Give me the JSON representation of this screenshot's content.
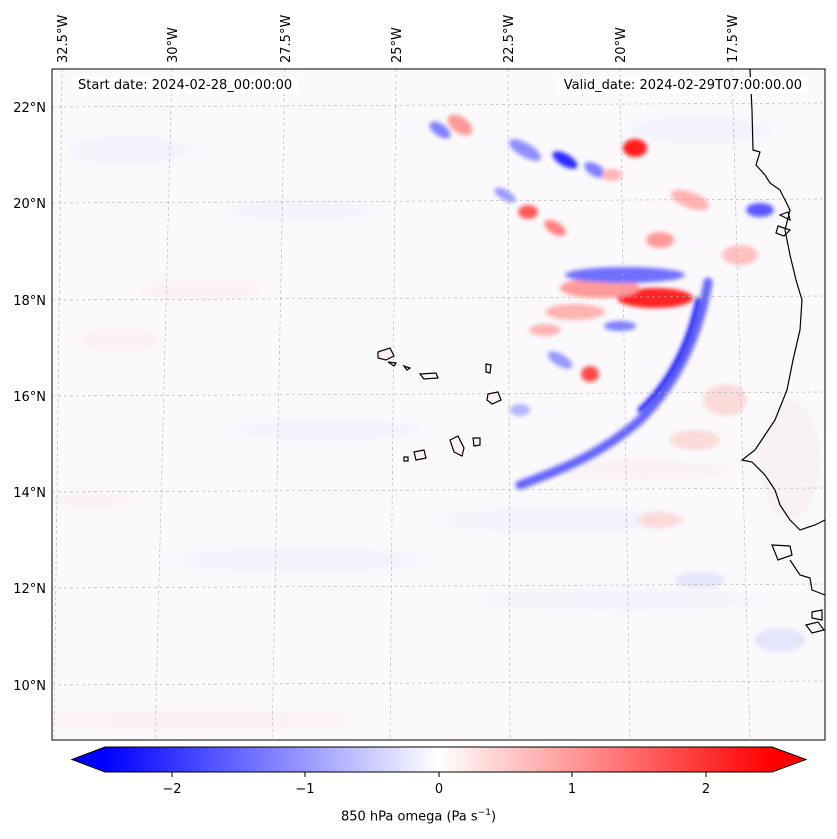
{
  "header": {
    "start_date": "Start date: 2024-02-28_00:00:00",
    "valid_date": "Valid_date: 2024-02-29T07:00:00.00"
  },
  "map": {
    "lon_labels": [
      "32.5°W",
      "30°W",
      "27.5°W",
      "25°W",
      "22.5°W",
      "20°W",
      "17.5°W"
    ],
    "lat_labels": [
      "22°N",
      "20°N",
      "18°N",
      "16°N",
      "14°N",
      "12°N",
      "10°N"
    ],
    "field": "850 hPa omega",
    "colormap": "bwr",
    "colors": {
      "negative": "#0000ff",
      "zero": "#ffffff",
      "positive": "#ff0000",
      "coast": "#000000",
      "grid": "#b0b0b0"
    }
  },
  "colorbar": {
    "label_main": "850 hPa omega (Pa s",
    "label_exp": "−1",
    "label_close": ")",
    "tick_labels": [
      "−2",
      "−1",
      "0",
      "1",
      "2"
    ],
    "ticks": [
      -2,
      -1,
      0,
      1,
      2
    ],
    "range": [
      -2.5,
      2.5
    ],
    "extend": "both"
  }
}
